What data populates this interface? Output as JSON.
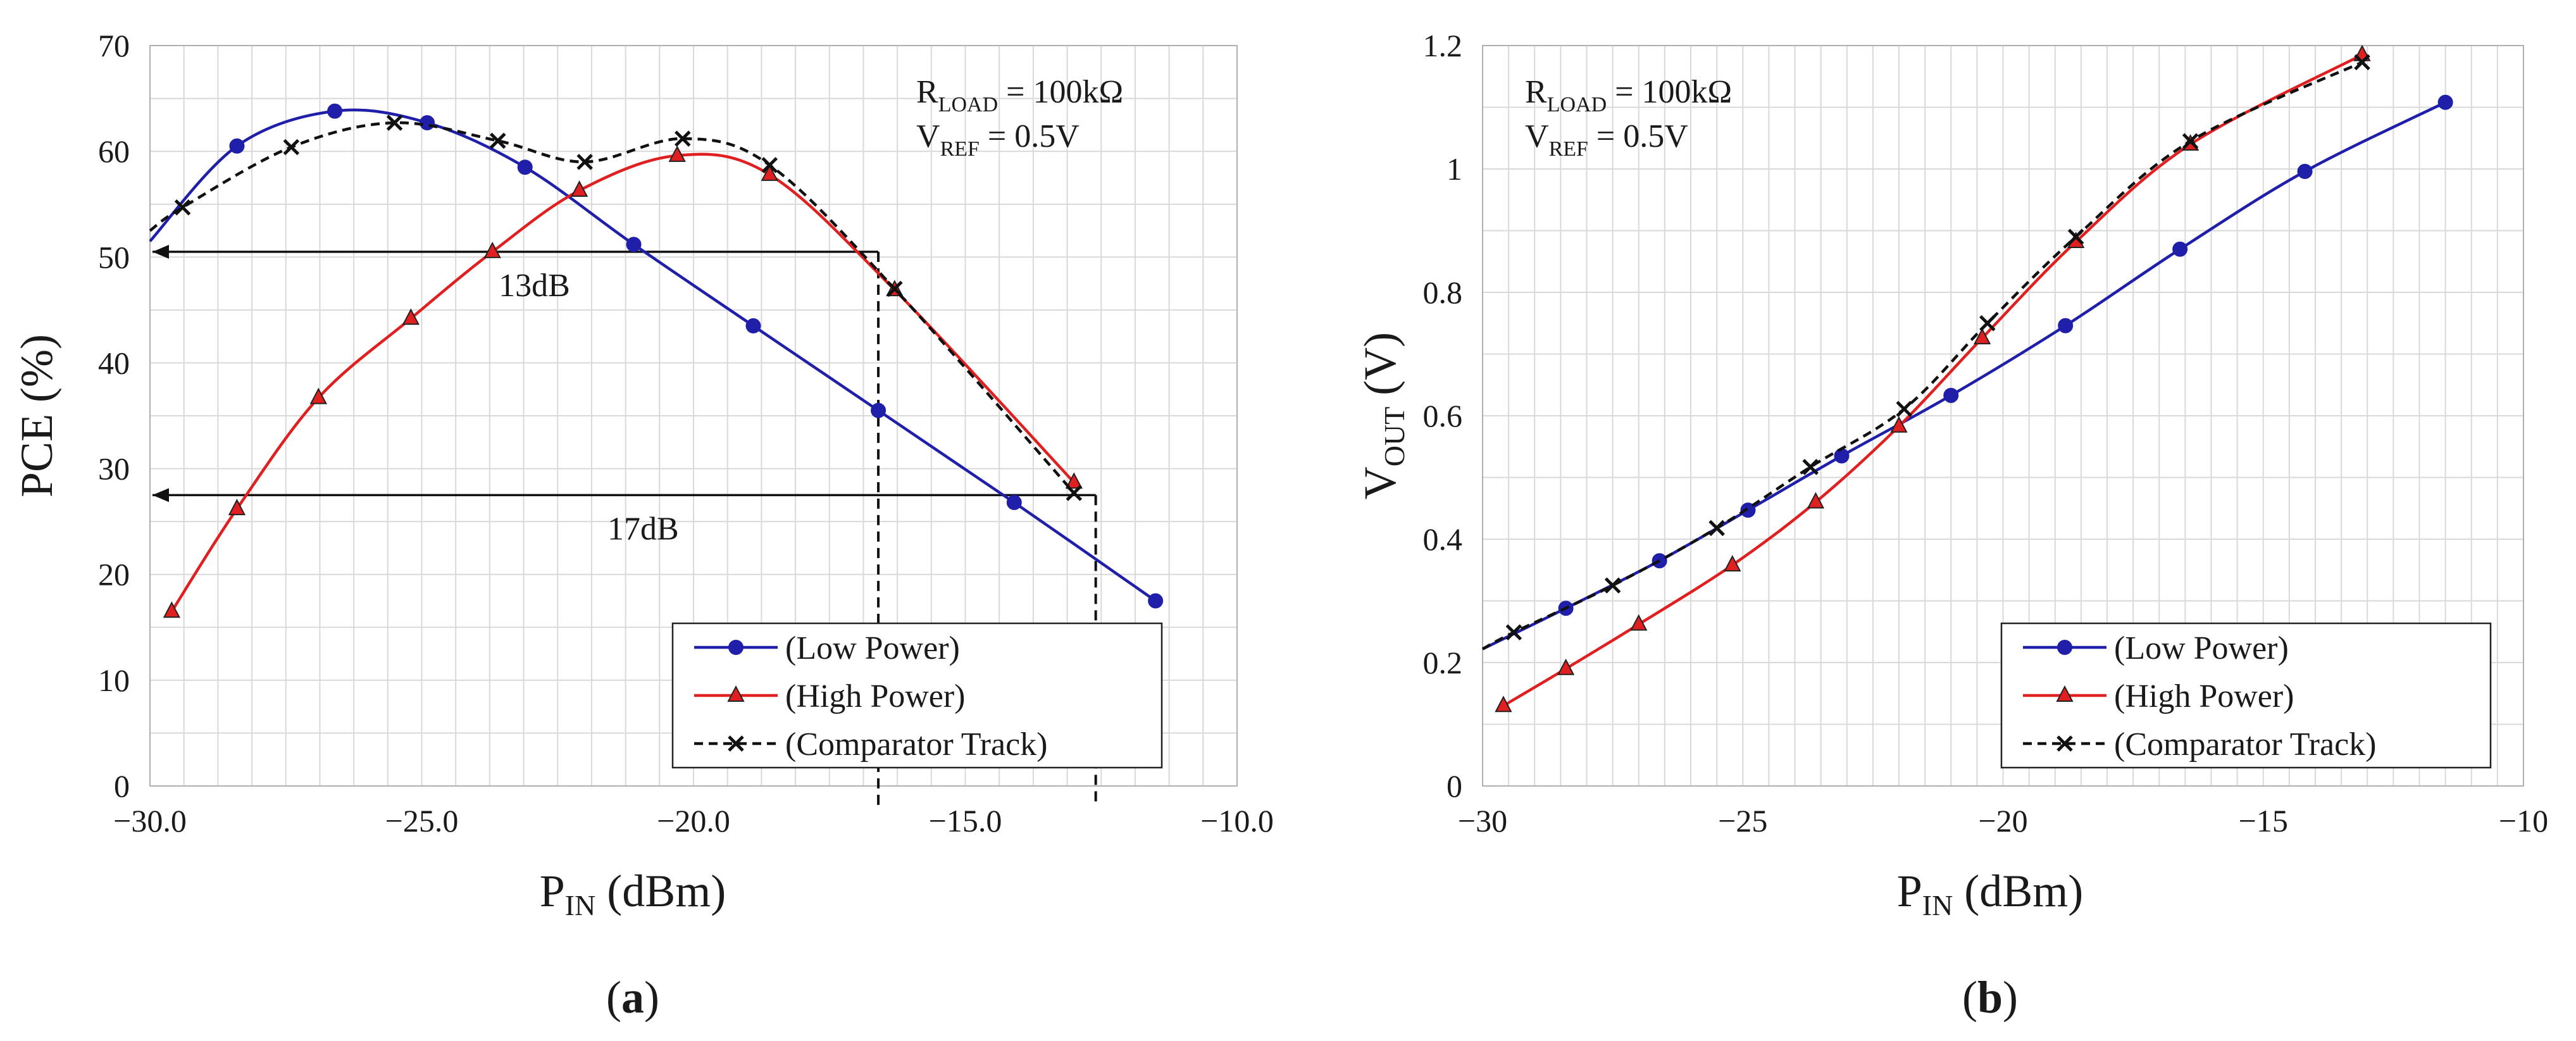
{
  "colors": {
    "low": "#1f1faa",
    "high": "#e02020",
    "comp": "#111111"
  },
  "chart_data": [
    {
      "type": "line",
      "panel_label": "(a)",
      "panel_letter": "a",
      "xlabel_main": "P",
      "xlabel_sub": "IN",
      "xlabel_rest": " (dBm)",
      "ylabel": "PCE (%)",
      "xlim": [
        -30,
        -10
      ],
      "ylim": [
        0,
        70
      ],
      "x_ticks": [
        -30,
        -25,
        -20,
        -15,
        -10
      ],
      "x_tick_labels": [
        "−30.0",
        "−25.0",
        "−20.0",
        "−15.0",
        "−10.0"
      ],
      "y_ticks": [
        0,
        10,
        20,
        30,
        40,
        50,
        60,
        70
      ],
      "y_tick_labels": [
        "0",
        "10",
        "20",
        "30",
        "40",
        "50",
        "60",
        "70"
      ],
      "annotations": [
        {
          "main": "R",
          "sub": "LOAD",
          "rest": "  =  100kΩ"
        },
        {
          "main": "V",
          "sub": "REF",
          "rest": "  =  0.5V"
        }
      ],
      "arrows": [
        {
          "label": "13dB",
          "y": 50.5,
          "x_from": -16.6,
          "x_to": -30
        },
        {
          "label": "17dB",
          "y": 27.5,
          "x_from": -12.6,
          "x_to": -30
        }
      ],
      "vlines": [
        {
          "x": -16.6,
          "y_top": 50.5
        },
        {
          "x": -12.6,
          "y_top": 27.5
        }
      ],
      "series": [
        {
          "name": "(Low Power)",
          "marker": "circle",
          "color_key": "low",
          "x": [
            -30.0,
            -28.4,
            -26.6,
            -24.9,
            -23.1,
            -21.1,
            -18.9,
            -16.6,
            -14.1,
            -11.5
          ],
          "y": [
            51.5,
            60.5,
            63.8,
            62.7,
            58.5,
            51.2,
            43.5,
            35.5,
            26.8,
            17.5
          ]
        },
        {
          "name": "(High Power)",
          "marker": "triangle",
          "color_key": "high",
          "x": [
            -29.6,
            -28.4,
            -26.9,
            -25.2,
            -23.7,
            -22.1,
            -20.3,
            -18.6,
            -16.3,
            -13.0
          ],
          "y": [
            16.5,
            26.2,
            36.7,
            44.2,
            50.5,
            56.3,
            59.6,
            57.8,
            46.9,
            28.7
          ]
        },
        {
          "name": "(Comparator Track)",
          "marker": "x",
          "color_key": "comp",
          "x": [
            -30.0,
            -29.4,
            -27.4,
            -25.5,
            -23.6,
            -22.0,
            -20.2,
            -18.6,
            -16.3,
            -13.0
          ],
          "y": [
            52.5,
            54.7,
            60.4,
            62.7,
            61.0,
            59.0,
            61.2,
            58.7,
            47.0,
            27.7
          ]
        }
      ]
    },
    {
      "type": "line",
      "panel_label": "(b)",
      "panel_letter": "b",
      "xlabel_main": "P",
      "xlabel_sub": "IN",
      "xlabel_rest": " (dBm)",
      "ylabel_main": "V",
      "ylabel_sub": "OUT",
      "ylabel_rest": " (V)",
      "xlim": [
        -30,
        -10
      ],
      "ylim": [
        0,
        1.2
      ],
      "x_ticks": [
        -30,
        -25,
        -20,
        -15,
        -10
      ],
      "x_tick_labels": [
        "−30",
        "−25",
        "−20",
        "−15",
        "−10"
      ],
      "y_ticks": [
        0,
        0.2,
        0.4,
        0.6,
        0.8,
        1.0,
        1.2
      ],
      "y_tick_labels": [
        "0",
        "0.2",
        "0.4",
        "0.6",
        "0.8",
        "1",
        "1.2"
      ],
      "annotations": [
        {
          "main": "R",
          "sub": "LOAD",
          "rest": "  =  100kΩ"
        },
        {
          "main": "V",
          "sub": "REF",
          "rest": "  =  0.5V"
        }
      ],
      "series": [
        {
          "name": "(Low Power)",
          "marker": "circle",
          "color_key": "low",
          "x": [
            -30.0,
            -28.4,
            -26.6,
            -24.9,
            -23.1,
            -21.0,
            -18.8,
            -16.6,
            -14.2,
            -11.5
          ],
          "y": [
            0.222,
            0.288,
            0.365,
            0.447,
            0.535,
            0.633,
            0.746,
            0.87,
            0.996,
            1.108
          ]
        },
        {
          "name": "(High Power)",
          "marker": "triangle",
          "color_key": "high",
          "x": [
            -29.6,
            -28.4,
            -27.0,
            -25.2,
            -23.6,
            -22.0,
            -20.4,
            -18.6,
            -16.4,
            -13.1
          ],
          "y": [
            0.13,
            0.19,
            0.262,
            0.358,
            0.46,
            0.583,
            0.726,
            0.882,
            1.04,
            1.185
          ]
        },
        {
          "name": "(Comparator Track)",
          "marker": "x",
          "color_key": "comp",
          "x": [
            -30.0,
            -29.4,
            -27.5,
            -25.5,
            -23.7,
            -21.9,
            -20.3,
            -18.6,
            -16.4,
            -13.1
          ],
          "y": [
            0.222,
            0.249,
            0.325,
            0.418,
            0.517,
            0.611,
            0.75,
            0.89,
            1.045,
            1.173
          ]
        }
      ]
    }
  ]
}
